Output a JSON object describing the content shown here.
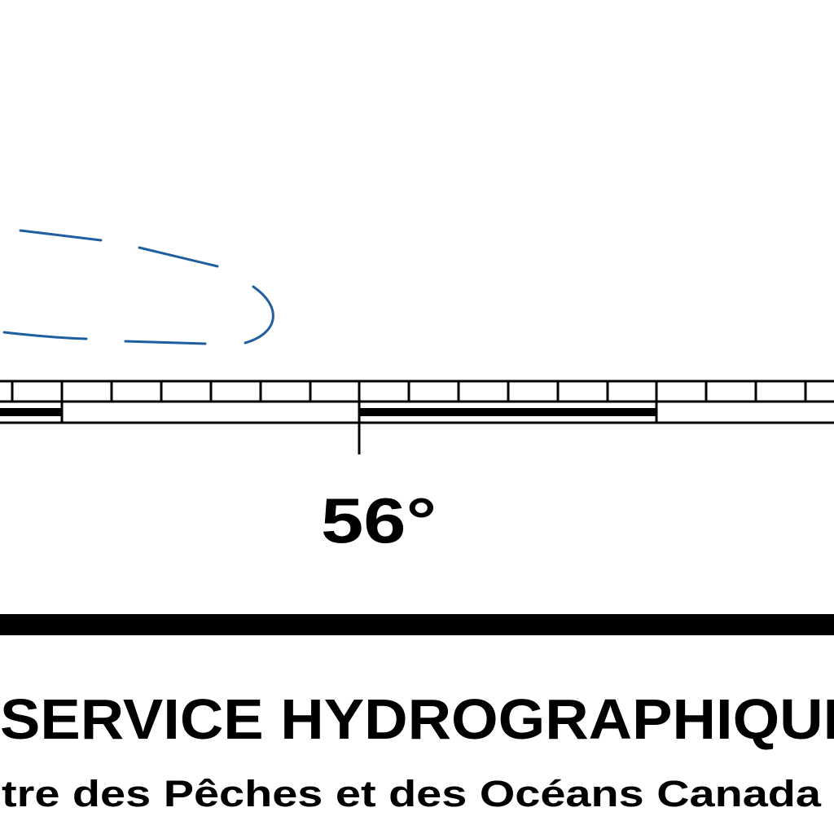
{
  "meridian": {
    "label": "56°"
  },
  "title_block": {
    "agency": "SERVICE HYDROGRAPHIQUE",
    "ministry": "tre des Pêches et des Océans Canada"
  },
  "colors": {
    "ink": "#000000",
    "contour": "#1f5fa0",
    "paper": "#ffffff"
  },
  "icons": {
    "contour": "dashed-depth-contour"
  }
}
